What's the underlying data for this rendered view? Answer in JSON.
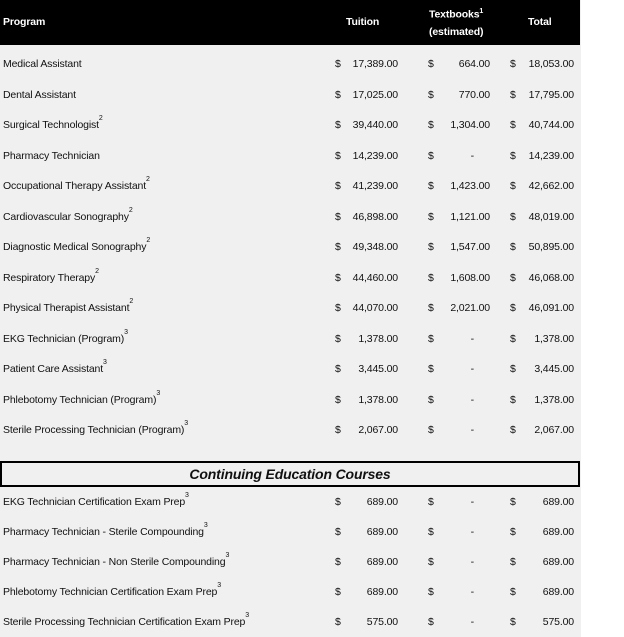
{
  "header": {
    "program": "Program",
    "tuition": "Tuition",
    "textbooks": "Textbooks",
    "textbooks_note": "1",
    "textbooks_sub": "(estimated)",
    "total": "Total"
  },
  "currency": "$",
  "programs": [
    {
      "name": "Medical Assistant",
      "note": "",
      "tuition": "17,389.00",
      "textbooks": "664.00",
      "total": "18,053.00"
    },
    {
      "name": "Dental Assistant",
      "note": "",
      "tuition": "17,025.00",
      "textbooks": "770.00",
      "total": "17,795.00"
    },
    {
      "name": "Surgical Technologist",
      "note": "2",
      "tuition": "39,440.00",
      "textbooks": "1,304.00",
      "total": "40,744.00"
    },
    {
      "name": "Pharmacy Technician",
      "note": "",
      "tuition": "14,239.00",
      "textbooks": "-",
      "total": "14,239.00"
    },
    {
      "name": "Occupational Therapy Assistant",
      "note": "2",
      "tuition": "41,239.00",
      "textbooks": "1,423.00",
      "total": "42,662.00"
    },
    {
      "name": "Cardiovascular Sonography",
      "note": "2",
      "tuition": "46,898.00",
      "textbooks": "1,121.00",
      "total": "48,019.00"
    },
    {
      "name": "Diagnostic Medical Sonography",
      "note": "2",
      "tuition": "49,348.00",
      "textbooks": "1,547.00",
      "total": "50,895.00"
    },
    {
      "name": "Respiratory Therapy",
      "note": "2",
      "tuition": "44,460.00",
      "textbooks": "1,608.00",
      "total": "46,068.00"
    },
    {
      "name": "Physical Therapist Assistant",
      "note": "2",
      "tuition": "44,070.00",
      "textbooks": "2,021.00",
      "total": "46,091.00"
    },
    {
      "name": "EKG Technician (Program)",
      "note": "3",
      "tuition": "1,378.00",
      "textbooks": "-",
      "total": "1,378.00"
    },
    {
      "name": "Patient Care Assistant",
      "note": "3",
      "tuition": "3,445.00",
      "textbooks": "-",
      "total": "3,445.00"
    },
    {
      "name": "Phlebotomy Technician (Program)",
      "note": "3",
      "tuition": "1,378.00",
      "textbooks": "-",
      "total": "1,378.00"
    },
    {
      "name": "Sterile Processing Technician (Program)",
      "note": "3",
      "tuition": "2,067.00",
      "textbooks": "-",
      "total": "2,067.00"
    }
  ],
  "section_title": "Continuing Education Courses",
  "courses": [
    {
      "name": "EKG Technician Certification Exam Prep",
      "note": "3",
      "tuition": "689.00",
      "textbooks": "-",
      "total": "689.00"
    },
    {
      "name": "Pharmacy Technician - Sterile Compounding",
      "note": "3",
      "tuition": "689.00",
      "textbooks": "-",
      "total": "689.00"
    },
    {
      "name": "Pharmacy Technician - Non Sterile Compounding",
      "note": "3",
      "tuition": "689.00",
      "textbooks": "-",
      "total": "689.00"
    },
    {
      "name": "Phlebotomy Technician Certification Exam Prep",
      "note": "3",
      "tuition": "689.00",
      "textbooks": "-",
      "total": "689.00"
    },
    {
      "name": "Sterile Processing Technician Certification Exam Prep",
      "note": "3",
      "tuition": "575.00",
      "textbooks": "-",
      "total": "575.00"
    }
  ]
}
